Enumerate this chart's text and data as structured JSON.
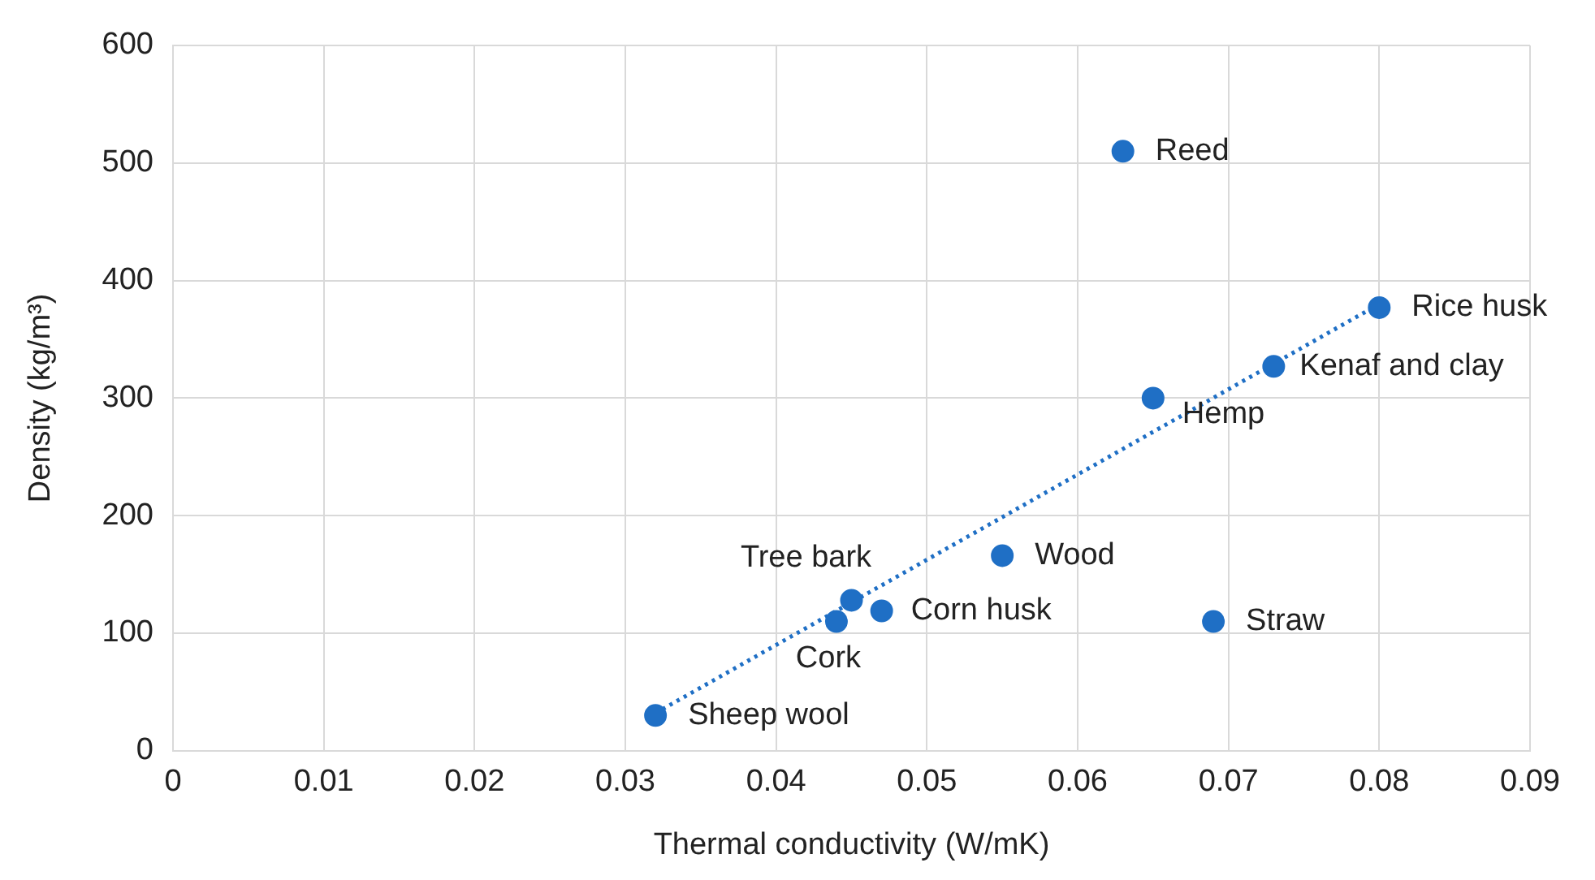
{
  "chart_data": {
    "type": "scatter",
    "xlabel": "Thermal conductivity (W/mK)",
    "ylabel": "Density (kg/m³)",
    "xlim": [
      0,
      0.09
    ],
    "xticks": [
      0,
      0.01,
      0.02,
      0.03,
      0.04,
      0.05,
      0.06,
      0.07,
      0.08,
      0.09
    ],
    "ylim": [
      0,
      600
    ],
    "yticks": [
      0,
      100,
      200,
      300,
      400,
      500,
      600
    ],
    "grid": true,
    "legend": false,
    "marker": "circle",
    "series": [
      {
        "color": "#1f6fc5",
        "x": [
          0.063,
          0.08,
          0.073,
          0.065,
          0.055,
          0.045,
          0.047,
          0.044,
          0.069,
          0.032
        ],
        "values": [
          510,
          377,
          327,
          300,
          166,
          128,
          119,
          110,
          110,
          30
        ]
      },
      {
        "type": "line",
        "color": "#1f6fc5",
        "line_style": "dotted",
        "marker": "none",
        "x": [
          0.032,
          0.08
        ],
        "values": [
          32,
          380
        ]
      }
    ],
    "annotations": [
      {
        "text": "Reed",
        "x": 0.063,
        "y": 510
      },
      {
        "text": "Rice husk",
        "x": 0.08,
        "y": 377
      },
      {
        "text": "Kenaf and clay",
        "x": 0.073,
        "y": 327
      },
      {
        "text": "Hemp",
        "x": 0.065,
        "y": 300
      },
      {
        "text": "Wood",
        "x": 0.055,
        "y": 166
      },
      {
        "text": "Tree bark",
        "x": 0.045,
        "y": 128
      },
      {
        "text": "Corn husk",
        "x": 0.047,
        "y": 119
      },
      {
        "text": "Cork",
        "x": 0.044,
        "y": 110
      },
      {
        "text": "Straw",
        "x": 0.069,
        "y": 110
      },
      {
        "text": "Sheep wool",
        "x": 0.032,
        "y": 30
      }
    ]
  }
}
